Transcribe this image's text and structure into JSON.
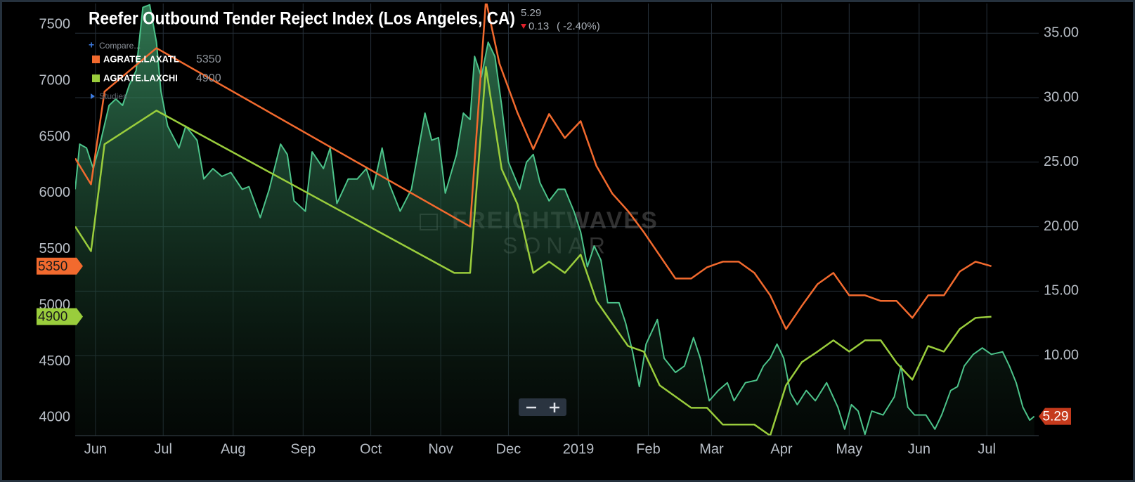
{
  "chart_data": {
    "type": "line",
    "title": "Reefer Outbound Tender Reject Index (Los Angeles, CA)",
    "change": 0.13,
    "change_percent": "( -2.40%)",
    "change_direction": "down",
    "compare_label": "Compare...",
    "studies_label": "Studies",
    "watermark": [
      "FREIGHTWAVES",
      "SONAR"
    ],
    "grid": true,
    "xlim": [
      "2018-05-23",
      "2019-07-24"
    ],
    "xticks": [
      {
        "value": "2018-06-01",
        "label": "Jun"
      },
      {
        "value": "2018-07-01",
        "label": "Jul"
      },
      {
        "value": "2018-08-01",
        "label": "Aug"
      },
      {
        "value": "2018-09-01",
        "label": "Sep"
      },
      {
        "value": "2018-10-01",
        "label": "Oct"
      },
      {
        "value": "2018-11-01",
        "label": "Nov"
      },
      {
        "value": "2018-12-01",
        "label": "Dec"
      },
      {
        "value": "2019-01-01",
        "label": "2019"
      },
      {
        "value": "2019-02-01",
        "label": "Feb"
      },
      {
        "value": "2019-03-01",
        "label": "Mar"
      },
      {
        "value": "2019-04-01",
        "label": "Apr"
      },
      {
        "value": "2019-05-01",
        "label": "May"
      },
      {
        "value": "2019-06-01",
        "label": "Jun"
      },
      {
        "value": "2019-07-01",
        "label": "Jul"
      }
    ],
    "ylim": [
      3840,
      7690
    ],
    "yticks": [
      4000,
      4500,
      5000,
      5500,
      6000,
      6500,
      7000,
      7500
    ],
    "y2lim": [
      3.8,
      37.3
    ],
    "y2ticks": [
      {
        "value": 10,
        "label": "10.00"
      },
      {
        "value": 15,
        "label": "15.00"
      },
      {
        "value": 20,
        "label": "20.00"
      },
      {
        "value": 25,
        "label": "25.00"
      },
      {
        "value": 30,
        "label": "30.00"
      },
      {
        "value": 35,
        "label": "35.00"
      }
    ],
    "series": [
      {
        "color": "#4cc38a",
        "axis": "y2",
        "area": true,
        "tag_color": "#c53a1c",
        "x": [
          "2018-05-23",
          "2018-05-25",
          "2018-05-28",
          "2018-05-31",
          "2018-06-03",
          "2018-06-07",
          "2018-06-10",
          "2018-06-13",
          "2018-06-16",
          "2018-06-19",
          "2018-06-22",
          "2018-06-25",
          "2018-06-28",
          "2018-06-30",
          "2018-07-03",
          "2018-07-08",
          "2018-07-11",
          "2018-07-16",
          "2018-07-19",
          "2018-07-23",
          "2018-07-27",
          "2018-07-31",
          "2018-08-05",
          "2018-08-08",
          "2018-08-13",
          "2018-08-17",
          "2018-08-22",
          "2018-08-25",
          "2018-08-28",
          "2018-09-02",
          "2018-09-05",
          "2018-09-10",
          "2018-09-13",
          "2018-09-16",
          "2018-09-21",
          "2018-09-25",
          "2018-09-29",
          "2018-10-02",
          "2018-10-06",
          "2018-10-09",
          "2018-10-14",
          "2018-10-19",
          "2018-10-22",
          "2018-10-25",
          "2018-10-28",
          "2018-10-31",
          "2018-11-03",
          "2018-11-08",
          "2018-11-11",
          "2018-11-14",
          "2018-11-16",
          "2018-11-19",
          "2018-11-22",
          "2018-11-25",
          "2018-11-28",
          "2018-12-01",
          "2018-12-06",
          "2018-12-09",
          "2018-12-12",
          "2018-12-15",
          "2018-12-19",
          "2018-12-23",
          "2018-12-26",
          "2018-12-30",
          "2019-01-02",
          "2019-01-05",
          "2019-01-08",
          "2019-01-11",
          "2019-01-14",
          "2019-01-19",
          "2019-01-22",
          "2019-01-25",
          "2019-01-28",
          "2019-01-31",
          "2019-02-05",
          "2019-02-08",
          "2019-02-13",
          "2019-02-17",
          "2019-02-21",
          "2019-02-24",
          "2019-02-28",
          "2019-03-04",
          "2019-03-08",
          "2019-03-11",
          "2019-03-16",
          "2019-03-21",
          "2019-03-24",
          "2019-03-27",
          "2019-03-30",
          "2019-04-02",
          "2019-04-05",
          "2019-04-08",
          "2019-04-12",
          "2019-04-16",
          "2019-04-21",
          "2019-04-26",
          "2019-04-29",
          "2019-05-02",
          "2019-05-05",
          "2019-05-08",
          "2019-05-11",
          "2019-05-16",
          "2019-05-21",
          "2019-05-24",
          "2019-05-27",
          "2019-05-30",
          "2019-06-04",
          "2019-06-08",
          "2019-06-11",
          "2019-06-15",
          "2019-06-18",
          "2019-06-21",
          "2019-06-25",
          "2019-06-29",
          "2019-07-03",
          "2019-07-08",
          "2019-07-11",
          "2019-07-14",
          "2019-07-17",
          "2019-07-20",
          "2019-07-22"
        ],
        "values": [
          22.9,
          26.4,
          26.1,
          24.5,
          26.4,
          29.4,
          29.9,
          29.4,
          31.0,
          32.1,
          37.0,
          37.2,
          34.3,
          30.5,
          27.8,
          26.1,
          27.8,
          26.7,
          23.7,
          24.5,
          23.9,
          24.2,
          22.9,
          23.1,
          20.7,
          22.9,
          26.4,
          25.6,
          22.0,
          21.2,
          25.8,
          24.5,
          26.1,
          21.8,
          23.7,
          23.7,
          24.5,
          22.9,
          26.1,
          23.4,
          21.2,
          22.9,
          25.8,
          28.8,
          26.7,
          26.9,
          22.6,
          25.6,
          28.8,
          28.3,
          33.2,
          31.6,
          34.3,
          33.2,
          29.4,
          25.0,
          22.9,
          25.0,
          25.6,
          23.4,
          22.0,
          22.9,
          22.9,
          21.2,
          19.6,
          16.9,
          18.5,
          17.4,
          14.1,
          14.1,
          12.5,
          10.3,
          7.6,
          10.9,
          12.8,
          9.8,
          8.7,
          9.2,
          11.4,
          9.8,
          6.5,
          7.3,
          7.9,
          6.5,
          7.9,
          8.1,
          9.2,
          9.8,
          10.9,
          9.8,
          7.1,
          6.2,
          7.3,
          6.5,
          7.9,
          6.0,
          4.3,
          6.2,
          5.7,
          3.9,
          5.7,
          5.4,
          6.8,
          9.2,
          6.0,
          5.4,
          5.4,
          4.3,
          5.4,
          7.3,
          7.6,
          9.2,
          10.1,
          10.6,
          10.1,
          10.3,
          9.2,
          7.9,
          6.0,
          5.0,
          5.29
        ]
      },
      {
        "name": "AGRATE.LAXATL",
        "color": "#f26a2e",
        "x": [
          "2018-05-23",
          "2018-05-30",
          "2018-06-05",
          "2018-06-28",
          "2018-11-14",
          "2018-11-21",
          "2018-11-27",
          "2018-12-05",
          "2018-12-12",
          "2018-12-19",
          "2018-12-26",
          "2019-01-02",
          "2019-01-09",
          "2019-01-16",
          "2019-01-23",
          "2019-01-30",
          "2019-02-13",
          "2019-02-20",
          "2019-02-27",
          "2019-03-06",
          "2019-03-13",
          "2019-03-20",
          "2019-03-27",
          "2019-04-03",
          "2019-04-10",
          "2019-04-17",
          "2019-04-24",
          "2019-05-01",
          "2019-05-08",
          "2019-05-15",
          "2019-05-22",
          "2019-05-29",
          "2019-06-05",
          "2019-06-12",
          "2019-06-19",
          "2019-06-26",
          "2019-07-03"
        ],
        "values": [
          6310,
          6079,
          6905,
          7293,
          5703,
          7720,
          7156,
          6717,
          6392,
          6705,
          6492,
          6642,
          6242,
          5997,
          5841,
          5653,
          5240,
          5240,
          5340,
          5390,
          5390,
          5290,
          5090,
          4789,
          4996,
          5190,
          5290,
          5090,
          5090,
          5040,
          5040,
          4889,
          5090,
          5090,
          5302,
          5390,
          5350
        ]
      },
      {
        "name": "AGRATE.LAXCHI",
        "color": "#9acd3c",
        "x": [
          "2018-05-23",
          "2018-05-30",
          "2018-06-05",
          "2018-06-28",
          "2018-11-07",
          "2018-11-14",
          "2018-11-21",
          "2018-11-28",
          "2018-12-05",
          "2018-12-12",
          "2018-12-19",
          "2018-12-26",
          "2019-01-02",
          "2019-01-09",
          "2019-01-16",
          "2019-01-23",
          "2019-01-30",
          "2019-02-06",
          "2019-02-20",
          "2019-02-27",
          "2019-03-06",
          "2019-03-13",
          "2019-03-20",
          "2019-03-27",
          "2019-04-03",
          "2019-04-10",
          "2019-04-17",
          "2019-04-24",
          "2019-05-01",
          "2019-05-08",
          "2019-05-15",
          "2019-05-22",
          "2019-05-29",
          "2019-06-05",
          "2019-06-12",
          "2019-06-19",
          "2019-06-26",
          "2019-07-03"
        ],
        "values": [
          5703,
          5484,
          6436,
          6736,
          5290,
          5290,
          7124,
          6216,
          5903,
          5290,
          5390,
          5290,
          5453,
          5040,
          4839,
          4639,
          4589,
          4288,
          4088,
          4088,
          3938,
          3938,
          3938,
          3840,
          4288,
          4495,
          4589,
          4689,
          4589,
          4689,
          4689,
          4489,
          4338,
          4639,
          4589,
          4789,
          4889,
          4900
        ]
      }
    ]
  }
}
